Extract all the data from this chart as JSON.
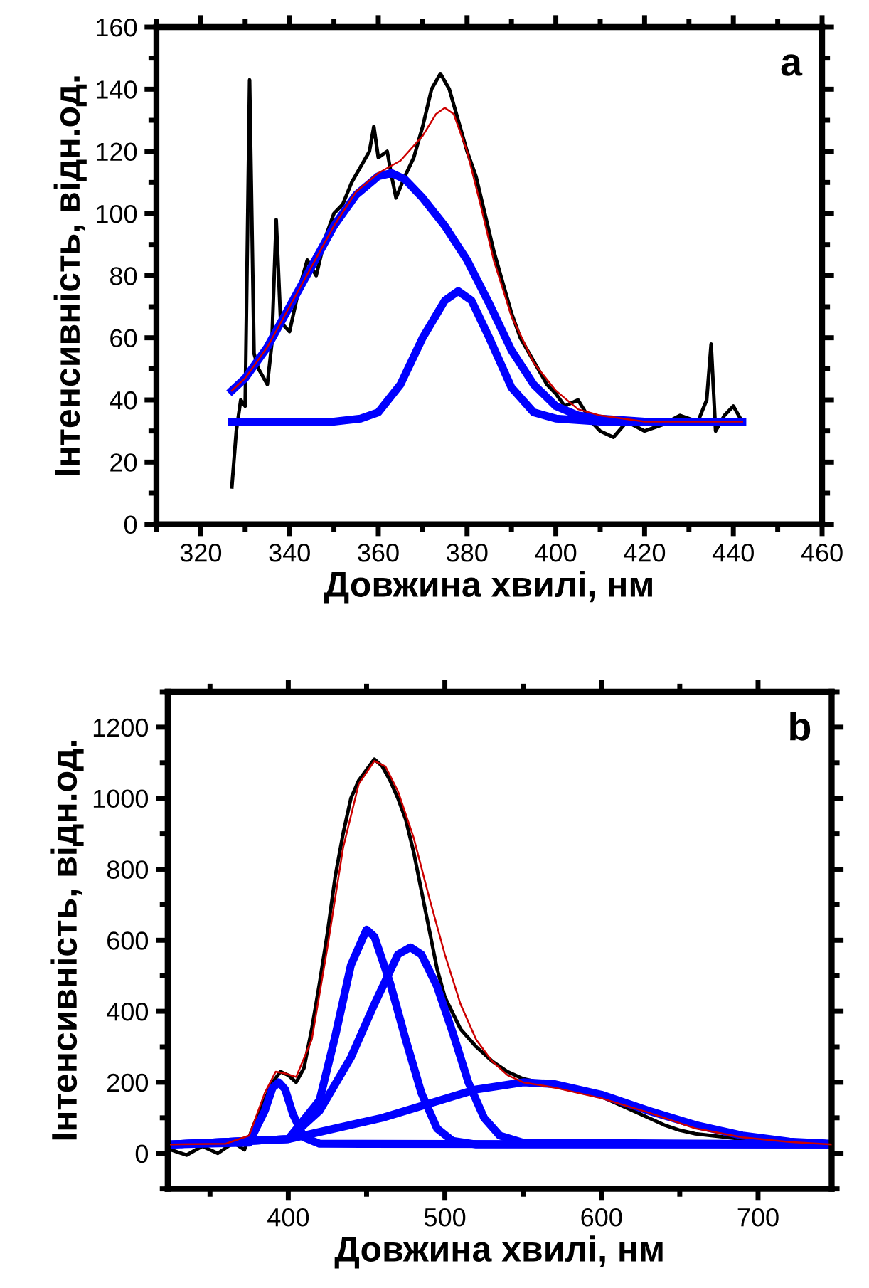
{
  "chart_data": [
    {
      "type": "line",
      "xlabel": "Довжина хвилі, нм",
      "ylabel": "Інтенсивність, відн.од.",
      "annotations": [
        "a"
      ],
      "xlim": [
        310,
        460
      ],
      "xticks": [
        320,
        340,
        360,
        380,
        400,
        420,
        440,
        460
      ],
      "ylim": [
        0,
        160
      ],
      "yticks": [
        0,
        20,
        40,
        60,
        80,
        100,
        120,
        140,
        160
      ],
      "grid": false,
      "legend": false,
      "series": [
        {
          "color": "#000000",
          "x": [
            327,
            328,
            329,
            330,
            331,
            332,
            333,
            335,
            336,
            337,
            338,
            340,
            342,
            344,
            346,
            348,
            350,
            352,
            354,
            356,
            358,
            359,
            360,
            362,
            363,
            364,
            366,
            368,
            370,
            372,
            374,
            376,
            378,
            380,
            382,
            384,
            386,
            388,
            390,
            392,
            394,
            396,
            398,
            400,
            402,
            405,
            408,
            410,
            413,
            416,
            420,
            424,
            428,
            432,
            434,
            435,
            436,
            438,
            440,
            442
          ],
          "values": [
            12,
            30,
            40,
            38,
            143,
            55,
            50,
            45,
            58,
            98,
            65,
            62,
            75,
            85,
            80,
            92,
            100,
            103,
            110,
            115,
            120,
            128,
            118,
            120,
            112,
            105,
            112,
            118,
            128,
            140,
            145,
            140,
            130,
            120,
            112,
            100,
            88,
            78,
            68,
            60,
            55,
            50,
            45,
            42,
            38,
            40,
            33,
            30,
            28,
            33,
            30,
            32,
            35,
            33,
            40,
            58,
            30,
            35,
            38,
            33
          ]
        },
        {
          "color": "#0000ff",
          "x": [
            327,
            330,
            335,
            340,
            345,
            350,
            355,
            360,
            363,
            366,
            370,
            375,
            380,
            385,
            390,
            395,
            400,
            405,
            410,
            420,
            442
          ],
          "values": [
            43,
            47,
            57,
            70,
            83,
            96,
            106,
            112,
            113,
            111,
            105,
            96,
            85,
            71,
            56,
            45,
            38,
            35,
            34,
            33,
            33
          ]
        },
        {
          "color": "#0000ff",
          "x": [
            327,
            350,
            356,
            360,
            365,
            370,
            375,
            378,
            381,
            385,
            390,
            395,
            400,
            410,
            442
          ],
          "values": [
            33,
            33,
            34,
            36,
            45,
            60,
            72,
            75,
            72,
            60,
            44,
            36,
            34,
            33,
            33
          ]
        },
        {
          "color": "#cc0000",
          "x": [
            327,
            330,
            335,
            340,
            345,
            350,
            355,
            360,
            365,
            370,
            373,
            375,
            377,
            380,
            383,
            386,
            390,
            395,
            400,
            405,
            410,
            420,
            430,
            442
          ],
          "values": [
            43,
            47,
            57,
            70,
            83,
            96,
            107,
            113,
            117,
            125,
            132,
            134,
            132,
            120,
            103,
            85,
            67,
            52,
            43,
            37,
            35,
            33,
            33,
            33
          ]
        }
      ]
    },
    {
      "type": "line",
      "xlabel": "Довжина хвилі, нм",
      "ylabel": "Інтенсивність, відн.од.",
      "annotations": [
        "b"
      ],
      "xlim": [
        323,
        747
      ],
      "xticks": [
        400,
        500,
        600,
        700
      ],
      "ylim": [
        -100,
        1300
      ],
      "yticks": [
        0,
        200,
        400,
        600,
        800,
        1000,
        1200
      ],
      "grid": false,
      "legend": false,
      "series": [
        {
          "color": "#000000",
          "x": [
            325,
            335,
            345,
            355,
            365,
            372,
            378,
            385,
            390,
            395,
            400,
            405,
            410,
            415,
            420,
            425,
            430,
            435,
            440,
            445,
            450,
            455,
            460,
            465,
            470,
            475,
            480,
            485,
            490,
            495,
            500,
            510,
            520,
            530,
            540,
            550,
            560,
            570,
            580,
            590,
            600,
            610,
            620,
            630,
            640,
            650,
            660,
            670,
            680,
            690,
            700,
            710,
            720,
            730,
            740,
            747
          ],
          "values": [
            10,
            -5,
            20,
            0,
            30,
            10,
            80,
            150,
            200,
            230,
            220,
            200,
            240,
            350,
            480,
            620,
            780,
            900,
            1000,
            1050,
            1080,
            1110,
            1090,
            1050,
            1000,
            940,
            850,
            740,
            630,
            520,
            440,
            350,
            300,
            260,
            230,
            210,
            200,
            190,
            185,
            175,
            160,
            140,
            120,
            100,
            80,
            65,
            55,
            50,
            45,
            40,
            40,
            35,
            35,
            30,
            35,
            30
          ]
        },
        {
          "color": "#0000ff",
          "x": [
            325,
            375,
            385,
            390,
            394,
            398,
            403,
            410,
            420,
            747
          ],
          "values": [
            25,
            30,
            120,
            185,
            200,
            180,
            110,
            45,
            27,
            25
          ]
        },
        {
          "color": "#0000ff",
          "x": [
            325,
            400,
            420,
            430,
            440,
            450,
            455,
            465,
            475,
            485,
            495,
            505,
            520,
            747
          ],
          "values": [
            25,
            40,
            150,
            330,
            530,
            630,
            610,
            480,
            320,
            170,
            70,
            35,
            25,
            25
          ]
        },
        {
          "color": "#0000ff",
          "x": [
            325,
            400,
            420,
            440,
            455,
            470,
            478,
            485,
            495,
            505,
            515,
            525,
            535,
            550,
            747
          ],
          "values": [
            25,
            40,
            120,
            270,
            420,
            560,
            580,
            560,
            470,
            340,
            200,
            100,
            50,
            30,
            25
          ]
        },
        {
          "color": "#0000ff",
          "x": [
            325,
            400,
            430,
            460,
            490,
            520,
            550,
            570,
            600,
            630,
            660,
            690,
            720,
            747
          ],
          "values": [
            25,
            40,
            70,
            100,
            140,
            180,
            200,
            195,
            165,
            120,
            80,
            50,
            33,
            27
          ]
        },
        {
          "color": "#cc0000",
          "x": [
            325,
            360,
            375,
            385,
            392,
            398,
            405,
            415,
            425,
            435,
            445,
            455,
            462,
            470,
            480,
            490,
            500,
            510,
            520,
            530,
            540,
            550,
            570,
            600,
            630,
            660,
            690,
            720,
            747
          ],
          "values": [
            25,
            27,
            50,
            170,
            230,
            225,
            215,
            320,
            580,
            860,
            1040,
            1105,
            1090,
            1020,
            890,
            720,
            560,
            420,
            320,
            260,
            220,
            200,
            185,
            155,
            115,
            70,
            45,
            32,
            25
          ]
        }
      ]
    }
  ]
}
